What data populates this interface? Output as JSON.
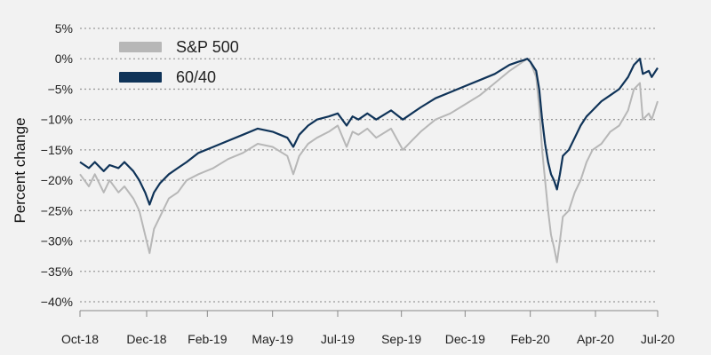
{
  "chart_data": {
    "type": "line",
    "title": "",
    "xlabel": "",
    "ylabel": "Percent change",
    "ylim": [
      -40,
      5
    ],
    "y_ticks": [
      5,
      0,
      -5,
      -10,
      -15,
      -20,
      -25,
      -30,
      -35,
      -40
    ],
    "y_tick_labels": [
      "5%",
      "0%",
      "−5%",
      "−10%",
      "−15%",
      "−20%",
      "−25%",
      "−30%",
      "−35%",
      "−40%"
    ],
    "x_ticks": [
      {
        "label": "Oct-18",
        "x": 0
      },
      {
        "label": "Dec-18",
        "x": 2.25
      },
      {
        "label": "Feb-19",
        "x": 4.3
      },
      {
        "label": "May-19",
        "x": 6.5
      },
      {
        "label": "Jul-19",
        "x": 8.7
      },
      {
        "label": "Sep-19",
        "x": 10.85
      },
      {
        "label": "Dec-19",
        "x": 13.0
      },
      {
        "label": "Feb-20",
        "x": 15.2
      },
      {
        "label": "Apr-20",
        "x": 17.4
      },
      {
        "label": "Jul-20",
        "x": 19.5
      }
    ],
    "x_range": [
      0,
      19.5
    ],
    "legend": "top-left",
    "grid": "horizontal dotted",
    "series": [
      {
        "name": "S&P 500",
        "color": "#b7b7b7",
        "x": [
          0,
          0.3,
          0.5,
          0.8,
          1.0,
          1.3,
          1.5,
          1.8,
          2.0,
          2.2,
          2.35,
          2.5,
          2.7,
          3.0,
          3.3,
          3.6,
          4.0,
          4.5,
          5.0,
          5.5,
          6.0,
          6.5,
          7.0,
          7.2,
          7.4,
          7.7,
          8.0,
          8.4,
          8.7,
          9.0,
          9.2,
          9.4,
          9.7,
          10.0,
          10.5,
          10.9,
          11.2,
          11.5,
          12.0,
          12.5,
          13.0,
          13.5,
          14.0,
          14.5,
          14.8,
          15.0,
          15.1,
          15.2,
          15.4,
          15.5,
          15.6,
          15.7,
          15.8,
          15.9,
          16.0,
          16.1,
          16.2,
          16.3,
          16.5,
          16.7,
          16.9,
          17.1,
          17.3,
          17.6,
          17.9,
          18.2,
          18.5,
          18.7,
          18.9,
          19.0,
          19.2,
          19.3,
          19.5
        ],
        "values": [
          -19,
          -21,
          -19,
          -22,
          -20,
          -22,
          -21,
          -23,
          -25,
          -29,
          -32,
          -28,
          -26,
          -23,
          -22,
          -20,
          -19,
          -18,
          -16.5,
          -15.5,
          -14,
          -14.5,
          -16,
          -19,
          -16,
          -14,
          -13,
          -12,
          -11,
          -14.5,
          -12,
          -12.5,
          -11.5,
          -13,
          -11.5,
          -15,
          -13.5,
          -12,
          -10,
          -9,
          -7.5,
          -6,
          -4,
          -2,
          -1,
          -0.3,
          0,
          -0.5,
          -3,
          -8,
          -15,
          -20,
          -25,
          -29,
          -31,
          -33.5,
          -30,
          -26,
          -25,
          -22,
          -20,
          -17,
          -15,
          -14,
          -12,
          -11,
          -8.5,
          -5,
          -4,
          -10,
          -9,
          -10,
          -7
        ]
      },
      {
        "name": "60/40",
        "color": "#0f3358",
        "x": [
          0,
          0.3,
          0.5,
          0.8,
          1.0,
          1.3,
          1.5,
          1.8,
          2.0,
          2.2,
          2.35,
          2.5,
          2.7,
          3.0,
          3.3,
          3.6,
          4.0,
          4.5,
          5.0,
          5.5,
          6.0,
          6.5,
          7.0,
          7.2,
          7.4,
          7.7,
          8.0,
          8.4,
          8.7,
          9.0,
          9.2,
          9.4,
          9.7,
          10.0,
          10.5,
          10.9,
          11.2,
          11.5,
          12.0,
          12.5,
          13.0,
          13.5,
          14.0,
          14.5,
          14.8,
          15.0,
          15.1,
          15.2,
          15.4,
          15.5,
          15.6,
          15.7,
          15.8,
          15.9,
          16.0,
          16.1,
          16.2,
          16.3,
          16.5,
          16.7,
          16.9,
          17.1,
          17.3,
          17.6,
          17.9,
          18.2,
          18.5,
          18.7,
          18.9,
          19.0,
          19.2,
          19.3,
          19.5
        ],
        "values": [
          -17,
          -18,
          -17,
          -18.5,
          -17.5,
          -18,
          -17,
          -18.5,
          -20,
          -22,
          -24,
          -22,
          -20.5,
          -19,
          -18,
          -17,
          -15.5,
          -14.5,
          -13.5,
          -12.5,
          -11.5,
          -12,
          -13,
          -14.5,
          -12.5,
          -11,
          -10,
          -9.5,
          -9,
          -11,
          -9.5,
          -10,
          -9,
          -10,
          -8.5,
          -10,
          -9,
          -8,
          -6.5,
          -5.5,
          -4.5,
          -3.5,
          -2.5,
          -1,
          -0.5,
          -0.2,
          0,
          -0.5,
          -2,
          -5,
          -10,
          -14,
          -17,
          -19,
          -20,
          -21.5,
          -19,
          -16,
          -15,
          -13,
          -11,
          -9.5,
          -8.5,
          -7,
          -6,
          -5,
          -3,
          -1,
          0,
          -2.5,
          -2,
          -3,
          -1.5
        ]
      }
    ]
  }
}
